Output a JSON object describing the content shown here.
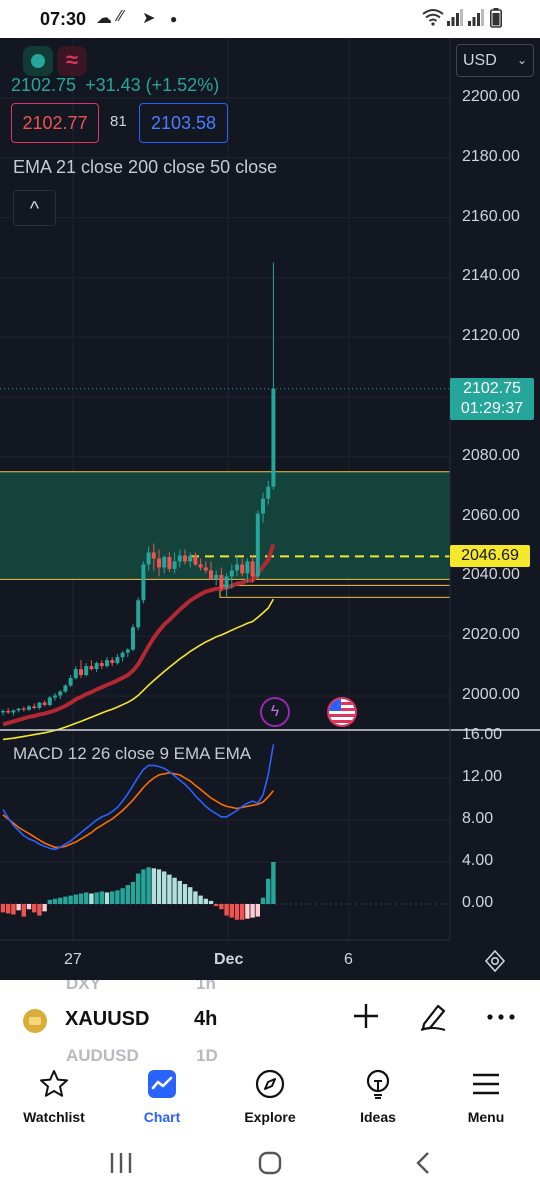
{
  "status_bar": {
    "time": "07:30",
    "icons": [
      "cloud-icon",
      "chain-icon",
      "telegram-icon",
      "dot-icon",
      "wifi-icon",
      "signal-icon",
      "signal-icon",
      "battery-icon"
    ]
  },
  "legend": {
    "price": "2102.75",
    "change": "+31.43 (+1.52%)",
    "bid": "2102.77",
    "spread": "81",
    "ask": "2103.58",
    "indicator": "EMA 21 close 200 close 50 close",
    "collapse_symbol": "^"
  },
  "currency": {
    "selected": "USD"
  },
  "price_axis": {
    "labels": [
      "2200.00",
      "2180.00",
      "2160.00",
      "2140.00",
      "2120.00",
      "2100.00",
      "2080.00",
      "2060.00",
      "2040.00",
      "2020.00",
      "2000.00"
    ],
    "values": [
      2200,
      2180,
      2160,
      2140,
      2120,
      2100,
      2080,
      2060,
      2040,
      2020,
      2000
    ],
    "current_price": "2102.75",
    "countdown": "01:29:37",
    "level_price": "2046.69"
  },
  "macd": {
    "label": "MACD 12 26 close 9 EMA EMA",
    "axis_labels": [
      "16.00",
      "12.00",
      "8.00",
      "4.00",
      "0.00"
    ],
    "axis_values": [
      16,
      12,
      8,
      4,
      0
    ]
  },
  "time_axis": {
    "labels": [
      "27",
      "Dec",
      "6"
    ]
  },
  "symbol_bar": {
    "ghost_above": "DXY",
    "ghost_above_tf": "1h",
    "symbol": "XAUUSD",
    "timeframe": "4h",
    "ghost_below": "AUDUSD",
    "ghost_below_tf": "1D"
  },
  "tabs": [
    {
      "label": "Watchlist",
      "icon": "star-icon"
    },
    {
      "label": "Chart",
      "icon": "chart-icon",
      "active": true
    },
    {
      "label": "Explore",
      "icon": "compass-icon"
    },
    {
      "label": "Ideas",
      "icon": "lightbulb-icon"
    },
    {
      "label": "Menu",
      "icon": "menu-icon"
    }
  ],
  "colors": {
    "up": "#26a69a",
    "down": "#ef5350",
    "ema21": "#b22833",
    "ema50": "#f5e82a",
    "macd_line": "#2962ff",
    "signal_line": "#ff6d00",
    "zone": "#14433c",
    "level": "#f5e82a"
  },
  "chart_data": {
    "type": "candlestick",
    "timeframe": "4h",
    "candles": [
      [
        1994.5,
        1995.5,
        1993.5,
        1995
      ],
      [
        1995,
        1996,
        1994,
        1994.5
      ],
      [
        1994.5,
        1995.5,
        1993.5,
        1995.2
      ],
      [
        1995.2,
        1996,
        1994.5,
        1995.8
      ],
      [
        1995.8,
        1996.5,
        1994.8,
        1995.4
      ],
      [
        1995.4,
        1997,
        1995,
        1996.5
      ],
      [
        1996.5,
        1997.5,
        1995.5,
        1996
      ],
      [
        1996,
        1998,
        1995.5,
        1997.8
      ],
      [
        1997.8,
        1998.5,
        1996.5,
        1997
      ],
      [
        1997,
        2000,
        1996.5,
        1999.5
      ],
      [
        1999.5,
        2001,
        1998.5,
        2000.2
      ],
      [
        2000.2,
        2002,
        1999,
        2001.5
      ],
      [
        2001.5,
        2004,
        2001,
        2003.5
      ],
      [
        2003.5,
        2007,
        2003,
        2006
      ],
      [
        2006,
        2010,
        2005.5,
        2009
      ],
      [
        2009,
        2012,
        2006,
        2007
      ],
      [
        2007,
        2011,
        2006.5,
        2010
      ],
      [
        2010,
        2012,
        2008.5,
        2009
      ],
      [
        2009,
        2011.5,
        2008,
        2011
      ],
      [
        2011,
        2012,
        2009,
        2010
      ],
      [
        2010,
        2013,
        2009.5,
        2012
      ],
      [
        2012,
        2013,
        2010,
        2011
      ],
      [
        2011,
        2014,
        2010.5,
        2013
      ],
      [
        2013,
        2015,
        2011.5,
        2014.5
      ],
      [
        2014.5,
        2016,
        2013,
        2015.5
      ],
      [
        2015.5,
        2024,
        2015,
        2023
      ],
      [
        2023,
        2033,
        2022,
        2032
      ],
      [
        2032,
        2045,
        2031,
        2044
      ],
      [
        2044,
        2050,
        2042,
        2048
      ],
      [
        2048,
        2051,
        2042,
        2046
      ],
      [
        2046,
        2049,
        2040,
        2043
      ],
      [
        2043,
        2047,
        2041,
        2046.5
      ],
      [
        2046.5,
        2048,
        2041.5,
        2042.5
      ],
      [
        2042.5,
        2048,
        2041,
        2045
      ],
      [
        2045,
        2049,
        2043,
        2047
      ],
      [
        2047,
        2049,
        2044,
        2045
      ],
      [
        2045,
        2048,
        2043,
        2046.8
      ],
      [
        2046.8,
        2048,
        2043.5,
        2044
      ],
      [
        2044,
        2046,
        2042,
        2043
      ],
      [
        2043,
        2045,
        2041,
        2042
      ],
      [
        2042,
        2045,
        2040,
        2039
      ],
      [
        2039,
        2042,
        2037,
        2040.5
      ],
      [
        2040.5,
        2043,
        2035,
        2036
      ],
      [
        2036,
        2041,
        2033,
        2040
      ],
      [
        2040,
        2044,
        2036,
        2042
      ],
      [
        2042,
        2047,
        2040,
        2044
      ],
      [
        2044,
        2046,
        2040,
        2041
      ],
      [
        2041,
        2046,
        2038,
        2045
      ],
      [
        2045,
        2047,
        2038,
        2040
      ],
      [
        2040,
        2062,
        2039,
        2061
      ],
      [
        2061,
        2068,
        2058,
        2066
      ],
      [
        2066,
        2072,
        2064,
        2070
      ],
      [
        2070,
        2145,
        2069,
        2102.75
      ]
    ],
    "ema21": [
      1990.5,
      1991,
      1991.5,
      1992,
      1992.5,
      1993,
      1993.3,
      1993.8,
      1994.1,
      1994.6,
      1995.2,
      1995.9,
      1996.7,
      1997.7,
      1998.9,
      1999.7,
      2000.6,
      2001.3,
      2002.2,
      2002.9,
      2003.7,
      2004.4,
      2005.2,
      2006.1,
      2007,
      2008.5,
      2010.6,
      2013.6,
      2016.7,
      2019.5,
      2021.8,
      2023.9,
      2025.5,
      2027.2,
      2028.9,
      2030.4,
      2031.9,
      2033,
      2034,
      2034.9,
      2035.4,
      2035.9,
      2035.9,
      2036.2,
      2036.8,
      2037.6,
      2037.9,
      2038.6,
      2038.7,
      2040.8,
      2043.3,
      2045.5,
      2050.7
    ],
    "ema50": [
      1985.5,
      1985.7,
      1985.9,
      1986.2,
      1986.5,
      1986.8,
      1987.1,
      1987.4,
      1987.7,
      1988.1,
      1988.5,
      1989,
      1989.6,
      1990.2,
      1990.9,
      1991.5,
      1992.2,
      1992.9,
      1993.6,
      1994.3,
      1995,
      1995.6,
      1996.3,
      1997.1,
      1997.9,
      1998.9,
      2000.2,
      2001.9,
      2003.6,
      2005.2,
      2006.7,
      2008.2,
      2009.6,
      2011,
      2012.4,
      2013.6,
      2014.9,
      2016,
      2017.1,
      2018.1,
      2018.9,
      2019.8,
      2020.4,
      2021.2,
      2022,
      2022.8,
      2023.5,
      2024.3,
      2024.9,
      2026.3,
      2027.8,
      2029.4,
      2032.4
    ],
    "zone": {
      "low": 2039,
      "high": 2075
    },
    "support_band": {
      "low": 2033,
      "high": 2037
    },
    "dashed_level": 2046.69,
    "current_price": 2102.75,
    "macd_line": [
      9,
      8.2,
      7.5,
      7,
      6.5,
      6.2,
      6,
      5.7,
      5.5,
      5.3,
      5.2,
      5.4,
      5.7,
      6,
      6.4,
      6.8,
      7.2,
      7.6,
      8,
      8.3,
      8.5,
      8.8,
      9.2,
      9.8,
      10.5,
      11.3,
      12.1,
      12.8,
      13.2,
      13.2,
      13.1,
      12.9,
      12.6,
      12.2,
      11.8,
      11.4,
      10.9,
      10.3,
      9.8,
      9.3,
      8.9,
      8.6,
      8.3,
      8.3,
      8.6,
      8.9,
      9.3,
      9.6,
      9.8,
      9.6,
      10.4,
      12.3,
      15.2
    ],
    "signal_line": [
      8.5,
      8.1,
      7.7,
      7.3,
      7,
      6.7,
      6.4,
      6.1,
      5.8,
      5.6,
      5.4,
      5.4,
      5.5,
      5.7,
      5.9,
      6.2,
      6.5,
      6.8,
      7.2,
      7.5,
      7.8,
      8.1,
      8.5,
      8.9,
      9.4,
      9.9,
      10.5,
      11.1,
      11.6,
      12,
      12.3,
      12.4,
      12.5,
      12.4,
      12.3,
      12,
      11.7,
      11.3,
      10.9,
      10.5,
      10.1,
      9.8,
      9.5,
      9.3,
      9.2,
      9.1,
      9.2,
      9.3,
      9.4,
      9.5,
      9.7,
      10.2,
      10.8
    ],
    "histogram": [
      -0.8,
      -0.9,
      -1,
      -0.6,
      -1.2,
      -0.5,
      -0.8,
      -1.1,
      -0.7,
      0.4,
      0.5,
      0.6,
      0.7,
      0.8,
      0.9,
      1,
      1.1,
      1,
      1.1,
      1.2,
      1.1,
      1.2,
      1.3,
      1.5,
      1.8,
      2.1,
      2.9,
      3.3,
      3.5,
      3.4,
      3.3,
      3.1,
      2.8,
      2.5,
      2.2,
      1.9,
      1.6,
      1.2,
      0.8,
      0.5,
      0.3,
      -0.2,
      -0.5,
      -1.1,
      -1.3,
      -1.5,
      -1.5,
      -1.4,
      -1.3,
      -1.2,
      0.6,
      2.4,
      4
    ],
    "time_labels": [
      "27",
      "Dec",
      "6"
    ],
    "ylim": [
      1993,
      2216
    ],
    "macd_ylim": [
      -3,
      16
    ]
  }
}
